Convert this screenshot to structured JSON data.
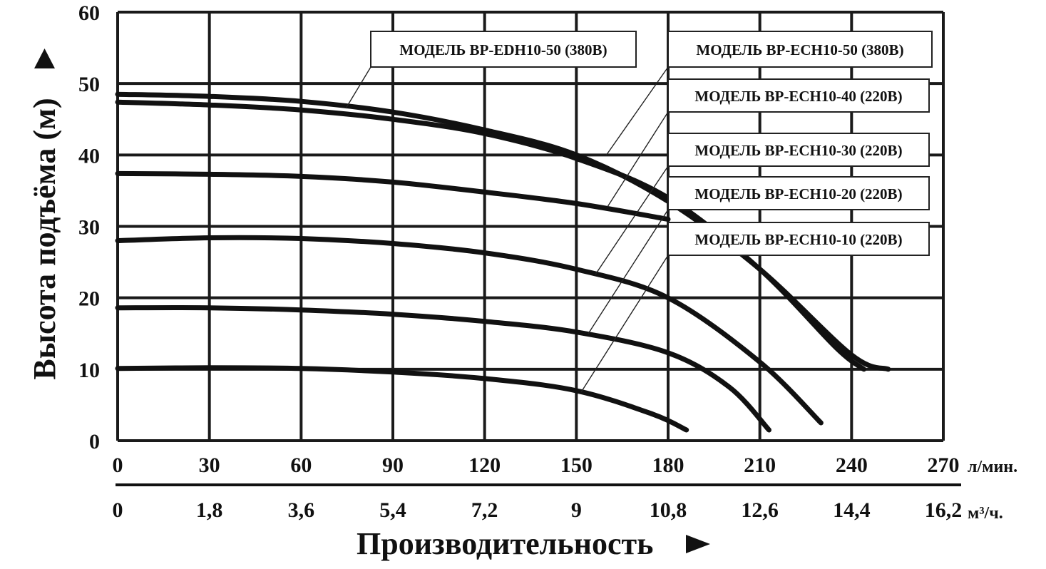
{
  "chart_data": {
    "type": "line",
    "ylabel": "Высота подъёма (м)",
    "xlabel": "Производительность",
    "ylim": [
      0,
      60
    ],
    "xlim": [
      0,
      270
    ],
    "y_ticks": [
      "0",
      "10",
      "20",
      "30",
      "40",
      "50",
      "60"
    ],
    "x_ticks_primary": [
      "0",
      "30",
      "60",
      "90",
      "120",
      "150",
      "180",
      "210",
      "240",
      "270"
    ],
    "x_ticks_secondary": [
      "0",
      "1,8",
      "3,6",
      "5,4",
      "7,2",
      "9",
      "10,8",
      "12,6",
      "14,4",
      "16,2"
    ],
    "x_unit_primary": "л/мин.",
    "x_unit_secondary": "м³/ч.",
    "grid": true,
    "legend_placement": "top-right",
    "colors": {
      "curve": "#111111",
      "grid": "#1a1a1a",
      "background": "#ffffff"
    },
    "series": [
      {
        "name": "МОДЕЛЬ BP-EDH10-50 (380В)",
        "x": [
          0,
          30,
          60,
          90,
          120,
          150,
          180,
          210,
          240,
          252
        ],
        "y": [
          48.5,
          48.2,
          47.5,
          46,
          43.5,
          40,
          33.5,
          24,
          12,
          10
        ]
      },
      {
        "name": "МОДЕЛЬ BP-ECH10-50 (380В)",
        "x": [
          0,
          30,
          60,
          90,
          120,
          150,
          180,
          210,
          235,
          244
        ],
        "y": [
          47.4,
          47,
          46.3,
          45,
          43,
          39.5,
          34,
          24,
          13,
          10
        ]
      },
      {
        "name": "МОДЕЛЬ BP-ECH10-40 (220В)",
        "x": [
          0,
          30,
          60,
          90,
          120,
          150,
          180
        ],
        "y": [
          37.4,
          37.3,
          37,
          36.2,
          34.8,
          33.2,
          31
        ]
      },
      {
        "name": "МОДЕЛЬ BP-ECH10-30 (220В)",
        "x": [
          0,
          30,
          60,
          90,
          120,
          150,
          180,
          210,
          230
        ],
        "y": [
          28,
          28.4,
          28.3,
          27.6,
          26.3,
          24,
          20,
          11,
          2.5
        ]
      },
      {
        "name": "МОДЕЛЬ BP-ECH10-20 (220В)",
        "x": [
          0,
          30,
          60,
          90,
          120,
          150,
          180,
          200,
          213
        ],
        "y": [
          18.6,
          18.6,
          18.3,
          17.7,
          16.7,
          15.2,
          12.3,
          7.5,
          1.5
        ]
      },
      {
        "name": "МОДЕЛЬ BP-ECH10-10 (220В)",
        "x": [
          0,
          30,
          60,
          90,
          120,
          150,
          175,
          186
        ],
        "y": [
          10.1,
          10.2,
          10.1,
          9.6,
          8.7,
          7,
          3.7,
          1.5
        ]
      }
    ]
  }
}
